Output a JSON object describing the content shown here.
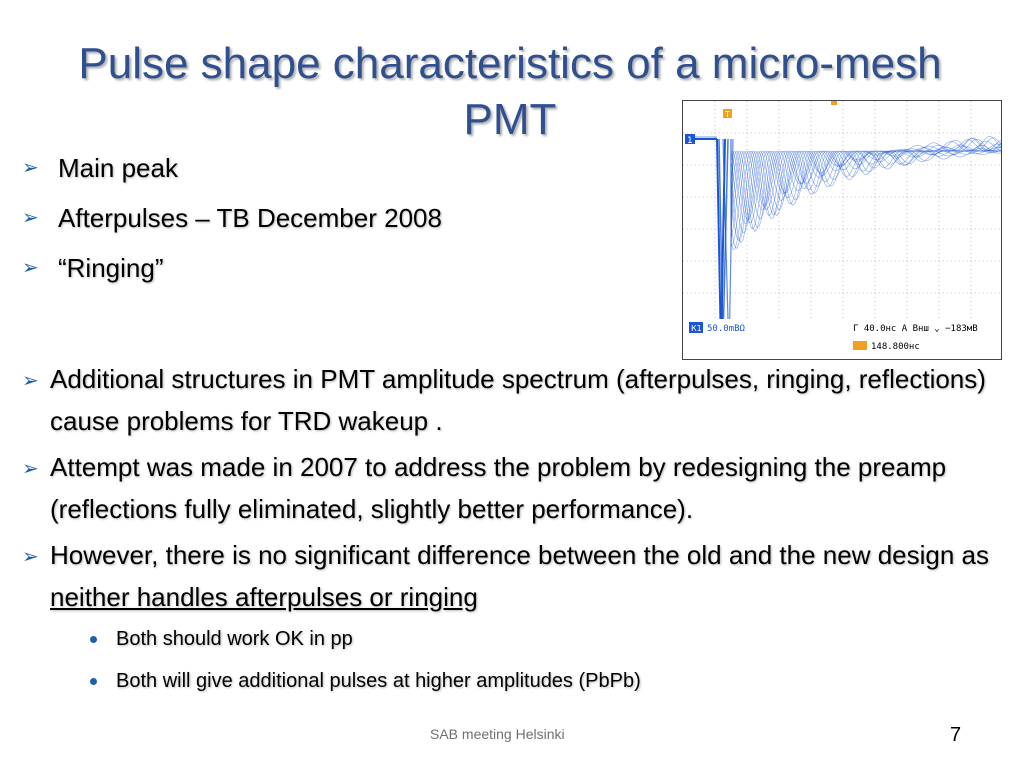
{
  "slide": {
    "title": "Pulse shape characteristics of a micro-mesh PMT",
    "top_bullets": [
      "Main peak",
      "Afterpulses – TB December 2008",
      "“Ringing”"
    ],
    "main_bullets": [
      {
        "text": "Additional structures in PMT amplitude spectrum (afterpulses, ringing, reflections) cause problems for TRD wakeup ."
      },
      {
        "text": "Attempt was made in 2007 to address the problem by redesigning the preamp (reflections fully eliminated, slightly better performance)."
      },
      {
        "text_before": "However, there is no significant difference between the old and the new design as ",
        "text_underlined": "neither handles afterpulses or ringing"
      }
    ],
    "sub_bullets": [
      "Both should work OK in pp",
      "Both will give additional pulses at higher amplitudes (PbPb)"
    ],
    "footer": "SAB meeting Helsinki",
    "page_number": "7"
  },
  "oscilloscope": {
    "trace_color": "#1a56d6",
    "channel_marker": "1",
    "trigger_marker": "T",
    "channel_label": "К1",
    "scale_label": "50.0mВΩ",
    "timebase_label": "Г 40.0нс  А  Внш  ⌄ −183мВ",
    "trigger_position_label": "148.800нс"
  }
}
